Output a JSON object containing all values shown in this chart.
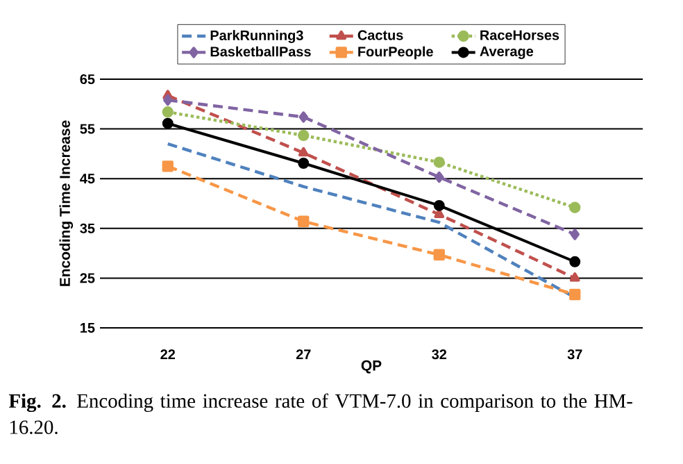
{
  "chart_data": {
    "type": "line",
    "xlabel": "QP",
    "ylabel": "Encoding Time Increase",
    "categories": [
      "22",
      "27",
      "32",
      "37"
    ],
    "ylim": [
      15,
      65
    ],
    "yticks": [
      15,
      25,
      35,
      45,
      55,
      65
    ],
    "grid": "y",
    "legend": "top",
    "series": [
      {
        "name": "ParkRunning3",
        "color": "#4f81bd",
        "values": [
          52.0,
          43.4,
          36.2,
          21.1
        ],
        "marker": "none",
        "line_style": "dashed"
      },
      {
        "name": "Cactus",
        "color": "#c0504d",
        "values": [
          61.7,
          50.2,
          37.8,
          25.0
        ],
        "marker": "triangle",
        "line_style": "dashed"
      },
      {
        "name": "RaceHorses",
        "color": "#9bbb59",
        "values": [
          58.4,
          53.7,
          48.3,
          39.2
        ],
        "marker": "circle",
        "line_style": "dotted"
      },
      {
        "name": "BasketballPass",
        "color": "#8064a2",
        "values": [
          60.8,
          57.4,
          45.3,
          33.8
        ],
        "marker": "diamond",
        "line_style": "dashed"
      },
      {
        "name": "FourPeople",
        "color": "#f79646",
        "values": [
          47.5,
          36.4,
          29.7,
          21.7
        ],
        "marker": "square",
        "line_style": "dashed"
      },
      {
        "name": "Average",
        "color": "#000000",
        "values": [
          56.1,
          48.1,
          39.6,
          28.3
        ],
        "marker": "circle",
        "line_style": "solid"
      }
    ],
    "annotations": [
      "**Fig. 2.** Encoding time increase rate of VTM-7.0 in comparison to the HM-16.20."
    ]
  }
}
